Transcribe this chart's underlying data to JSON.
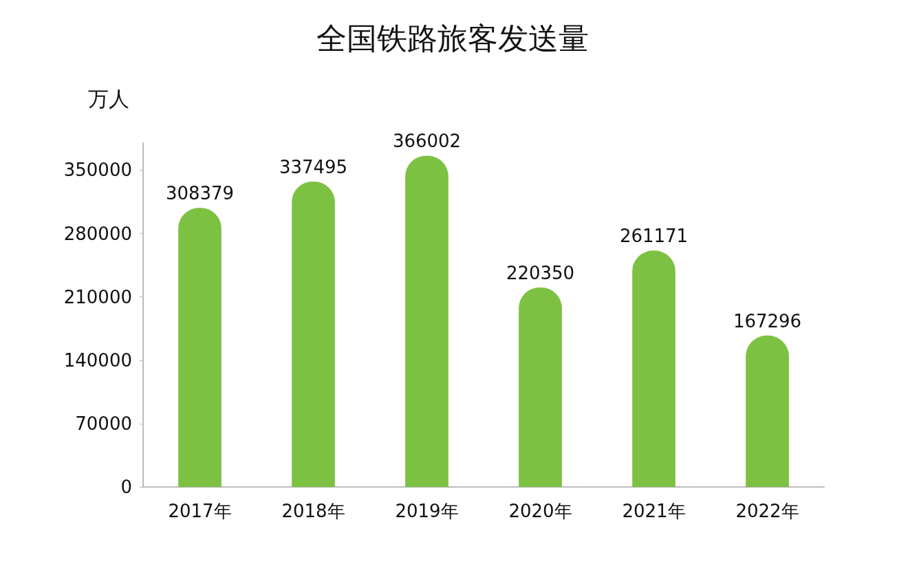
{
  "chart_data": {
    "type": "bar",
    "title": "全国铁路旅客发送量",
    "ylabel": "万人",
    "categories": [
      "2017年",
      "2018年",
      "2019年",
      "2020年",
      "2021年",
      "2022年"
    ],
    "values": [
      308379,
      337495,
      366002,
      220350,
      261171,
      167296
    ],
    "color": "#7cc142",
    "ylim": [
      0,
      380000
    ],
    "yticks": [
      0,
      70000,
      140000,
      210000,
      280000,
      350000
    ],
    "data_labels": true,
    "grid": false
  }
}
